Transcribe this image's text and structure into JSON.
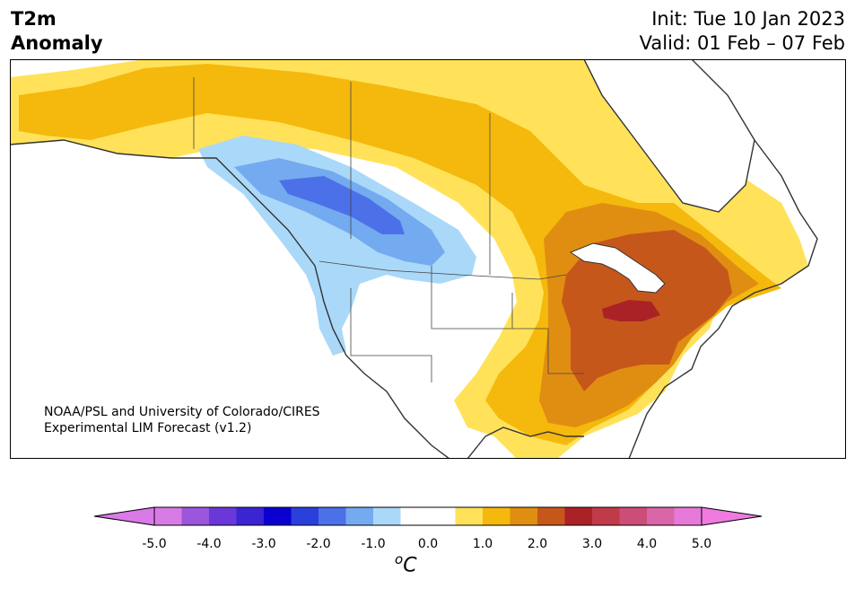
{
  "title": {
    "line1": "T2m",
    "line2": "Anomaly"
  },
  "dates": {
    "init": "Init: Tue 10 Jan 2023",
    "valid": "Valid: 01 Feb – 07 Feb"
  },
  "credit": {
    "line1": "NOAA/PSL and University of Colorado/CIRES",
    "line2": "Experimental LIM Forecast (v1.2)"
  },
  "colorbar": {
    "unit_base": "C",
    "unit_prefix": "o",
    "ticks": [
      "-5.0",
      "-4.0",
      "-3.0",
      "-2.0",
      "-1.0",
      "0.0",
      "1.0",
      "2.0",
      "3.0",
      "4.0",
      "5.0"
    ],
    "range": [
      -5.0,
      5.0
    ],
    "step": 0.5,
    "colors": [
      "#d97be6",
      "#9c56dc",
      "#6a38d9",
      "#3b24d2",
      "#0a00cf",
      "#2a3fdc",
      "#4c70e8",
      "#74aaef",
      "#aad8f8",
      "#ffffff",
      "#ffffff",
      "#ffe25a",
      "#f4b90c",
      "#e08e12",
      "#c6571b",
      "#aa2226",
      "#c03a4a",
      "#cc4d78",
      "#d966a8",
      "#e77ad8"
    ],
    "min_extend_color": "#da79e8",
    "max_extend_color": "#ef7be0"
  },
  "map_colors": {
    "ocean": "#ffffff",
    "land_neutral": "#ffffff",
    "warm1": "#ffe25a",
    "warm2": "#f4b90c",
    "warm3": "#e08e12",
    "warm4": "#c6571b",
    "warm5": "#aa2226",
    "cold1": "#aad8f8",
    "cold2": "#74aaef",
    "cold3": "#4c70e8",
    "coast": "#333333"
  }
}
